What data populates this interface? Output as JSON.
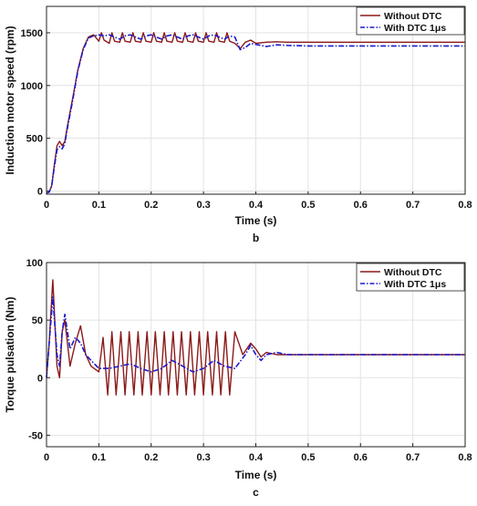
{
  "chart_data": [
    {
      "type": "line",
      "caption": "b",
      "xlabel": "Time (s)",
      "ylabel": "Induction motor speed (rpm)",
      "xlim": [
        0,
        0.8
      ],
      "ylim": [
        -30,
        1750
      ],
      "xticks": [
        "0",
        "0.1",
        "0.2",
        "0.3",
        "0.4",
        "0.5",
        "0.6",
        "0.7",
        "0.8"
      ],
      "yticks": [
        "0",
        "500",
        "1000",
        "1500"
      ],
      "grid": true,
      "legend_position": "top-right",
      "series": [
        {
          "name": "Without DTC",
          "color": "#8B1A1A",
          "style": "solid",
          "x": [
            0,
            0.005,
            0.01,
            0.015,
            0.02,
            0.025,
            0.03,
            0.035,
            0.04,
            0.05,
            0.06,
            0.07,
            0.08,
            0.09,
            0.1,
            0.105,
            0.11,
            0.12,
            0.125,
            0.13,
            0.14,
            0.145,
            0.15,
            0.16,
            0.165,
            0.17,
            0.18,
            0.185,
            0.19,
            0.2,
            0.205,
            0.21,
            0.22,
            0.225,
            0.23,
            0.24,
            0.245,
            0.25,
            0.26,
            0.265,
            0.27,
            0.28,
            0.285,
            0.29,
            0.3,
            0.305,
            0.31,
            0.32,
            0.325,
            0.33,
            0.34,
            0.345,
            0.35,
            0.36,
            0.37,
            0.38,
            0.39,
            0.4,
            0.42,
            0.44,
            0.46,
            0.5,
            0.6,
            0.7,
            0.8
          ],
          "y": [
            -20,
            -10,
            50,
            250,
            430,
            470,
            430,
            470,
            620,
            880,
            1150,
            1350,
            1460,
            1480,
            1420,
            1500,
            1430,
            1400,
            1500,
            1420,
            1410,
            1500,
            1420,
            1410,
            1500,
            1420,
            1410,
            1500,
            1420,
            1410,
            1500,
            1420,
            1410,
            1500,
            1420,
            1410,
            1500,
            1420,
            1410,
            1500,
            1420,
            1410,
            1500,
            1420,
            1410,
            1500,
            1420,
            1410,
            1500,
            1420,
            1410,
            1500,
            1420,
            1400,
            1350,
            1410,
            1430,
            1400,
            1410,
            1415,
            1410,
            1410,
            1410,
            1410,
            1410
          ]
        },
        {
          "name": "With DTC 1μs",
          "color": "#1a1acc",
          "style": "dashdot",
          "x": [
            0,
            0.005,
            0.01,
            0.015,
            0.02,
            0.025,
            0.03,
            0.035,
            0.04,
            0.05,
            0.06,
            0.07,
            0.08,
            0.09,
            0.1,
            0.11,
            0.12,
            0.13,
            0.14,
            0.15,
            0.16,
            0.17,
            0.18,
            0.19,
            0.2,
            0.21,
            0.22,
            0.23,
            0.24,
            0.25,
            0.26,
            0.27,
            0.28,
            0.29,
            0.3,
            0.31,
            0.32,
            0.33,
            0.34,
            0.35,
            0.36,
            0.37,
            0.38,
            0.39,
            0.4,
            0.42,
            0.44,
            0.46,
            0.5,
            0.6,
            0.7,
            0.8
          ],
          "y": [
            -20,
            -10,
            50,
            230,
            390,
            420,
            400,
            450,
            600,
            860,
            1140,
            1340,
            1450,
            1470,
            1480,
            1470,
            1480,
            1460,
            1440,
            1470,
            1480,
            1460,
            1440,
            1470,
            1480,
            1460,
            1440,
            1470,
            1480,
            1460,
            1440,
            1470,
            1480,
            1460,
            1440,
            1470,
            1480,
            1460,
            1440,
            1470,
            1460,
            1340,
            1360,
            1400,
            1390,
            1370,
            1385,
            1380,
            1375,
            1375,
            1375,
            1375
          ]
        }
      ]
    },
    {
      "type": "line",
      "caption": "c",
      "xlabel": "Time (s)",
      "ylabel": "Torque pulsation (Nm)",
      "xlim": [
        0,
        0.8
      ],
      "ylim": [
        -60,
        100
      ],
      "xticks": [
        "0",
        "0.1",
        "0.2",
        "0.3",
        "0.4",
        "0.5",
        "0.6",
        "0.7",
        "0.8"
      ],
      "yticks": [
        "-50",
        "0",
        "50",
        "100"
      ],
      "grid": true,
      "legend_position": "top-right",
      "series": [
        {
          "name": "Without DTC",
          "color": "#8B1A1A",
          "style": "solid",
          "x": [
            0,
            0.005,
            0.012,
            0.02,
            0.025,
            0.03,
            0.035,
            0.045,
            0.055,
            0.065,
            0.075,
            0.085,
            0.1,
            0.108,
            0.117,
            0.125,
            0.133,
            0.142,
            0.15,
            0.158,
            0.167,
            0.175,
            0.183,
            0.192,
            0.2,
            0.208,
            0.217,
            0.225,
            0.233,
            0.242,
            0.25,
            0.258,
            0.267,
            0.275,
            0.283,
            0.292,
            0.3,
            0.308,
            0.317,
            0.325,
            0.333,
            0.342,
            0.35,
            0.36,
            0.375,
            0.39,
            0.4,
            0.41,
            0.42,
            0.44,
            0.46,
            0.5,
            0.6,
            0.7,
            0.8
          ],
          "y": [
            0,
            30,
            85,
            10,
            0,
            40,
            50,
            10,
            30,
            45,
            20,
            10,
            5,
            35,
            -15,
            40,
            -15,
            40,
            -15,
            40,
            -15,
            40,
            -15,
            40,
            -15,
            40,
            -15,
            40,
            -15,
            40,
            -15,
            40,
            -15,
            40,
            -15,
            40,
            -15,
            40,
            -15,
            40,
            -15,
            40,
            -15,
            40,
            20,
            30,
            25,
            18,
            22,
            20,
            20,
            20,
            20,
            20,
            20
          ]
        },
        {
          "name": "With DTC 1μs",
          "color": "#1a1acc",
          "style": "dashdot",
          "x": [
            0,
            0.005,
            0.012,
            0.02,
            0.025,
            0.03,
            0.035,
            0.045,
            0.055,
            0.065,
            0.075,
            0.085,
            0.1,
            0.12,
            0.14,
            0.16,
            0.18,
            0.2,
            0.22,
            0.24,
            0.26,
            0.28,
            0.3,
            0.32,
            0.34,
            0.36,
            0.38,
            0.39,
            0.4,
            0.41,
            0.42,
            0.44,
            0.46,
            0.5,
            0.6,
            0.7,
            0.8
          ],
          "y": [
            0,
            30,
            70,
            20,
            10,
            40,
            55,
            25,
            35,
            30,
            20,
            15,
            8,
            8,
            10,
            12,
            8,
            5,
            8,
            15,
            10,
            5,
            8,
            15,
            10,
            8,
            20,
            28,
            20,
            15,
            20,
            22,
            20,
            20,
            20,
            20,
            20
          ]
        }
      ]
    }
  ]
}
